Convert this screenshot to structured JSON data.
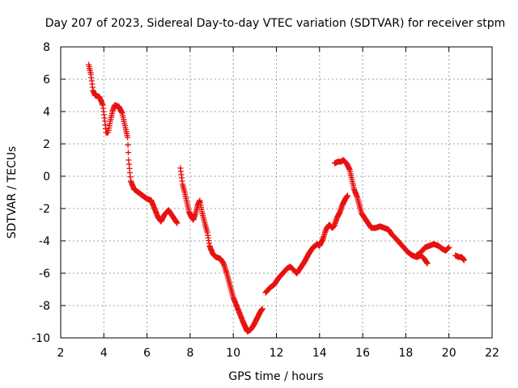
{
  "chart_data": {
    "type": "scatter",
    "title": "Day 207 of 2023, Sidereal Day-to-day VTEC variation (SDTVAR) for receiver stpm",
    "xlabel": "GPS time / hours",
    "ylabel": "SDTVAR / TECUs",
    "xlim": [
      2,
      22
    ],
    "ylim": [
      -10,
      8
    ],
    "xticks": [
      2,
      4,
      6,
      8,
      10,
      12,
      14,
      16,
      18,
      20,
      22
    ],
    "yticks": [
      -10,
      -8,
      -6,
      -4,
      -2,
      0,
      2,
      4,
      6,
      8
    ],
    "grid": true,
    "marker": "plus",
    "color": "#e8110f",
    "series": [
      {
        "name": "SDTVAR segment 1",
        "points": [
          [
            3.3,
            6.9
          ],
          [
            3.4,
            6.3
          ],
          [
            3.5,
            5.3
          ],
          [
            3.6,
            5.0
          ],
          [
            3.8,
            4.9
          ],
          [
            3.95,
            4.4
          ],
          [
            4.05,
            3.4
          ],
          [
            4.1,
            2.7
          ],
          [
            4.2,
            2.7
          ],
          [
            4.3,
            3.4
          ],
          [
            4.4,
            4.0
          ],
          [
            4.5,
            4.4
          ],
          [
            4.7,
            4.3
          ],
          [
            4.85,
            3.9
          ],
          [
            5.0,
            3.0
          ],
          [
            5.1,
            2.4
          ],
          [
            5.15,
            1.0
          ],
          [
            5.25,
            -0.3
          ],
          [
            5.4,
            -0.8
          ],
          [
            5.6,
            -1.0
          ],
          [
            5.8,
            -1.2
          ],
          [
            6.0,
            -1.4
          ],
          [
            6.2,
            -1.5
          ],
          [
            6.35,
            -2.0
          ],
          [
            6.5,
            -2.5
          ],
          [
            6.65,
            -2.8
          ],
          [
            6.8,
            -2.4
          ],
          [
            7.0,
            -2.1
          ],
          [
            7.15,
            -2.4
          ],
          [
            7.3,
            -2.7
          ],
          [
            7.4,
            -2.9
          ]
        ]
      },
      {
        "name": "SDTVAR segment 2",
        "points": [
          [
            7.55,
            0.5
          ],
          [
            7.65,
            -0.5
          ],
          [
            7.75,
            -1.0
          ],
          [
            7.85,
            -1.6
          ],
          [
            7.95,
            -2.2
          ],
          [
            8.05,
            -2.5
          ],
          [
            8.15,
            -2.7
          ],
          [
            8.25,
            -2.3
          ],
          [
            8.35,
            -1.8
          ],
          [
            8.45,
            -1.5
          ],
          [
            8.55,
            -2.2
          ],
          [
            8.7,
            -3.0
          ],
          [
            8.8,
            -3.5
          ],
          [
            8.9,
            -4.3
          ],
          [
            9.05,
            -4.8
          ],
          [
            9.2,
            -5.0
          ],
          [
            9.4,
            -5.1
          ],
          [
            9.55,
            -5.4
          ],
          [
            9.7,
            -6.0
          ],
          [
            9.8,
            -6.5
          ],
          [
            9.9,
            -7.0
          ],
          [
            10.0,
            -7.5
          ],
          [
            10.15,
            -8.0
          ],
          [
            10.3,
            -8.5
          ],
          [
            10.45,
            -9.0
          ],
          [
            10.55,
            -9.3
          ],
          [
            10.65,
            -9.6
          ],
          [
            10.8,
            -9.5
          ],
          [
            10.95,
            -9.2
          ],
          [
            11.1,
            -8.8
          ],
          [
            11.25,
            -8.4
          ],
          [
            11.35,
            -8.2
          ]
        ]
      },
      {
        "name": "SDTVAR segment 3",
        "points": [
          [
            11.5,
            -7.2
          ],
          [
            11.7,
            -6.9
          ],
          [
            11.9,
            -6.7
          ],
          [
            12.1,
            -6.3
          ],
          [
            12.3,
            -6.0
          ],
          [
            12.5,
            -5.7
          ],
          [
            12.65,
            -5.6
          ],
          [
            12.8,
            -5.8
          ],
          [
            12.95,
            -6.0
          ],
          [
            13.1,
            -5.7
          ],
          [
            13.3,
            -5.3
          ],
          [
            13.5,
            -4.8
          ],
          [
            13.7,
            -4.4
          ],
          [
            13.9,
            -4.2
          ],
          [
            14.0,
            -4.3
          ],
          [
            14.15,
            -3.9
          ],
          [
            14.3,
            -3.3
          ],
          [
            14.45,
            -3.0
          ],
          [
            14.6,
            -3.2
          ],
          [
            14.7,
            -3.0
          ],
          [
            14.8,
            -2.6
          ],
          [
            14.95,
            -2.2
          ],
          [
            15.05,
            -1.8
          ],
          [
            15.2,
            -1.4
          ],
          [
            15.3,
            -1.2
          ]
        ]
      },
      {
        "name": "SDTVAR segment 4",
        "points": [
          [
            14.7,
            0.8
          ],
          [
            14.85,
            0.9
          ],
          [
            15.0,
            0.9
          ],
          [
            15.1,
            1.0
          ],
          [
            15.25,
            0.8
          ],
          [
            15.4,
            0.4
          ],
          [
            15.5,
            -0.2
          ],
          [
            15.6,
            -0.8
          ],
          [
            15.75,
            -1.3
          ],
          [
            15.85,
            -1.8
          ],
          [
            15.95,
            -2.3
          ],
          [
            16.1,
            -2.6
          ],
          [
            16.25,
            -2.9
          ],
          [
            16.4,
            -3.2
          ],
          [
            16.6,
            -3.2
          ],
          [
            16.8,
            -3.1
          ],
          [
            17.0,
            -3.2
          ],
          [
            17.2,
            -3.3
          ],
          [
            17.35,
            -3.6
          ],
          [
            17.5,
            -3.8
          ],
          [
            17.7,
            -4.1
          ],
          [
            17.9,
            -4.4
          ],
          [
            18.1,
            -4.7
          ],
          [
            18.3,
            -4.9
          ],
          [
            18.5,
            -5.0
          ],
          [
            18.7,
            -4.9
          ],
          [
            18.85,
            -5.1
          ],
          [
            19.0,
            -5.4
          ]
        ]
      },
      {
        "name": "SDTVAR segment 5",
        "points": [
          [
            18.5,
            -4.9
          ],
          [
            18.7,
            -4.7
          ],
          [
            18.9,
            -4.4
          ],
          [
            19.1,
            -4.3
          ],
          [
            19.3,
            -4.2
          ],
          [
            19.5,
            -4.3
          ],
          [
            19.7,
            -4.5
          ],
          [
            19.85,
            -4.6
          ],
          [
            20.0,
            -4.4
          ]
        ]
      },
      {
        "name": "SDTVAR segment 6",
        "points": [
          [
            20.3,
            -4.9
          ],
          [
            20.45,
            -5.0
          ],
          [
            20.6,
            -5.0
          ],
          [
            20.7,
            -5.2
          ]
        ]
      }
    ]
  }
}
